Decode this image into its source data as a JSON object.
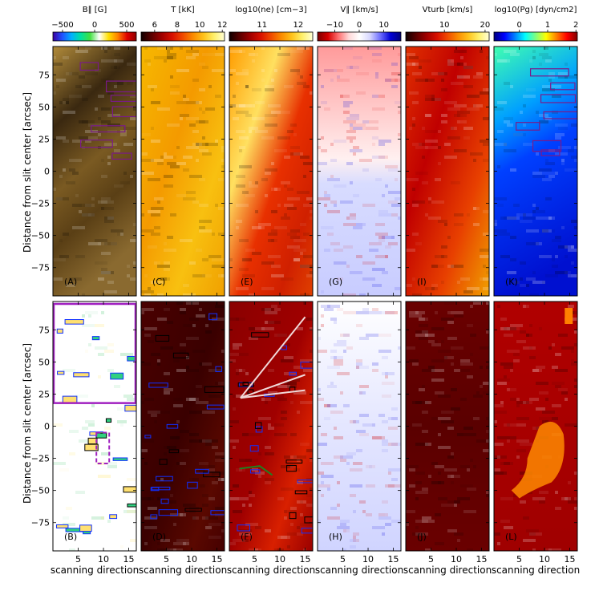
{
  "figure": {
    "ylabel": "Distance from slit center [arcsec]",
    "xlabel": "scanning direction"
  },
  "chart_data": {
    "type": "heatmap",
    "x_ticks": [
      "5",
      "10",
      "15"
    ],
    "y_ticks": [
      "75",
      "50",
      "25",
      "0",
      "−25",
      "−50",
      "−75"
    ],
    "xlim": [
      0,
      16.5
    ],
    "ylim": [
      -97,
      97
    ],
    "colorbars": [
      {
        "title": "B∥  [G]",
        "ticks": [
          "−500",
          "0",
          "500"
        ],
        "range": [
          -650,
          650
        ],
        "colormap": "rainbow-diverging"
      },
      {
        "title": "T  [kK]",
        "ticks": [
          "6",
          "8",
          "10",
          "12"
        ],
        "range": [
          4.8,
          12.2
        ],
        "colormap": "heat"
      },
      {
        "title": "log10(ne)  [cm−3]",
        "ticks": [
          "11",
          "12"
        ],
        "range": [
          10.1,
          12.4
        ],
        "colormap": "heat"
      },
      {
        "title": "V∥  [km/s]",
        "ticks": [
          "−10",
          "0",
          "10"
        ],
        "range": [
          -17,
          17
        ],
        "colormap": "red-white-blue"
      },
      {
        "title": "Vturb  [km/s]",
        "ticks": [
          "10",
          "20"
        ],
        "range": [
          0.5,
          21
        ],
        "colormap": "heat"
      },
      {
        "title": "log10(Pg)  [dyn/cm2]",
        "ticks": [
          "0",
          "1",
          "2"
        ],
        "range": [
          -0.9,
          2.05
        ],
        "colormap": "jet"
      }
    ],
    "panels": [
      {
        "label": "(A)",
        "quantity": "photospheric B∥ (sunspot/umbra region)"
      },
      {
        "label": "(B)",
        "quantity": "B∥ selected contours"
      },
      {
        "label": "(C)",
        "quantity": "T"
      },
      {
        "label": "(D)",
        "quantity": "T masked"
      },
      {
        "label": "(E)",
        "quantity": "log10(ne)"
      },
      {
        "label": "(F)",
        "quantity": "log10(ne) masked"
      },
      {
        "label": "(G)",
        "quantity": "V∥"
      },
      {
        "label": "(H)",
        "quantity": "V∥ masked"
      },
      {
        "label": "(I)",
        "quantity": "Vturb"
      },
      {
        "label": "(J)",
        "quantity": "Vturb masked"
      },
      {
        "label": "(K)",
        "quantity": "log10(Pg)"
      },
      {
        "label": "(L)",
        "quantity": "log10(Pg) masked"
      }
    ]
  }
}
